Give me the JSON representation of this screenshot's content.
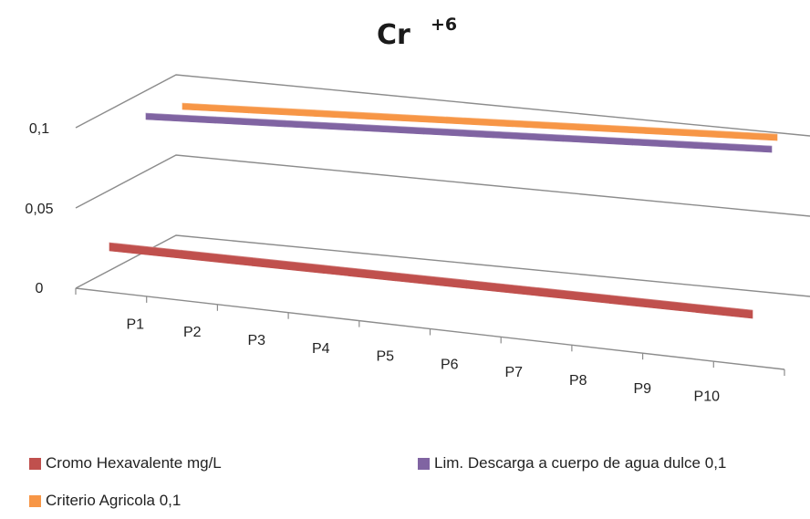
{
  "chart_data": {
    "type": "line",
    "title": "Cr",
    "title_superscript": "+6",
    "categories": [
      "P1",
      "P2",
      "P3",
      "P4",
      "P5",
      "P6",
      "P7",
      "P8",
      "P9",
      "P10"
    ],
    "y_ticks": [
      "0",
      "0,05",
      "0,1"
    ],
    "ylim": [
      0,
      0.1
    ],
    "series": [
      {
        "name": "Cromo Hexavalente mg/L",
        "values": [
          0.01,
          0.01,
          0.01,
          0.01,
          0.01,
          0.01,
          0.01,
          0.01,
          0.01,
          0.01
        ],
        "color": "#c0504d"
      },
      {
        "name": "Lim. Descarga a cuerpo de agua dulce 0,1",
        "values": [
          0.1,
          0.1,
          0.1,
          0.1,
          0.1,
          0.1,
          0.1,
          0.1,
          0.1,
          0.1
        ],
        "color": "#8064a2"
      },
      {
        "name": "Criterio Agricola 0,1",
        "values": [
          0.1,
          0.1,
          0.1,
          0.1,
          0.1,
          0.1,
          0.1,
          0.1,
          0.1,
          0.1
        ],
        "color": "#f79646"
      }
    ],
    "grid": true,
    "legend_position": "bottom"
  }
}
